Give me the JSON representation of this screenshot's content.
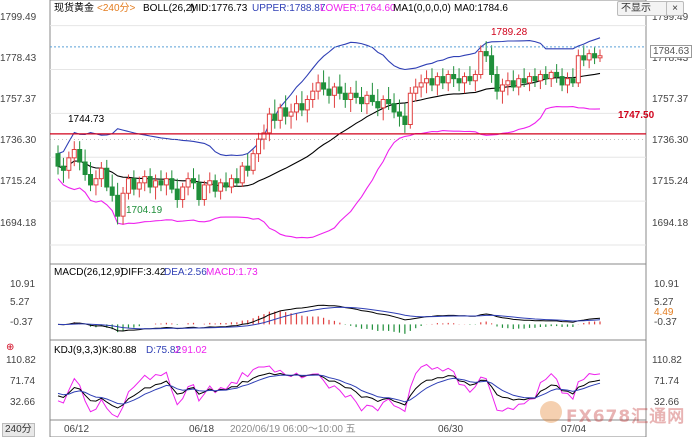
{
  "legend": {
    "instrument": "现货黄金",
    "period": "<240分>",
    "boll_label": "BOLL(26,2)",
    "mid": "MID:1776.73",
    "upper": "UPPER:1788.87",
    "lower": "LOWER:1764.60",
    "ma1": "MA1(0,0,0,0)",
    "ma0": "MA0:1784.6"
  },
  "buttons": {
    "toggle": "不显示",
    "close": "×"
  },
  "price_labels": [
    "1799.49",
    "1778.43",
    "1757.37",
    "1736.30",
    "1715.24",
    "1694.18"
  ],
  "current_price": "1784.63",
  "annotations": {
    "high": "1789.28",
    "low": "1704.19",
    "level": "1744.73",
    "hline": "1747.50"
  },
  "macd": {
    "title": "MACD(26,12,9)",
    "diff": "DIFF:3.42",
    "dea": "DEA:2.56",
    "macd": "MACD:1.73",
    "axis_labels": [
      "10.91",
      "5.27",
      "-0.37"
    ],
    "current": "4.49"
  },
  "kdj": {
    "title": "KDJ(9,3,3)",
    "k": "K:80.88",
    "d": "D:75.82",
    "j": "J:91.02",
    "axis_labels": [
      "110.82",
      "71.74",
      "32.66"
    ]
  },
  "x_labels": [
    "06/12",
    "06/18",
    "06/30",
    "07/04"
  ],
  "cursor_label": "2020/06/19 06:00～10:00 五",
  "period_tab": "240分",
  "logo_text": "FX678汇通网",
  "colors": {
    "up": "#e04040",
    "down": "#1f8f3a",
    "upper": "#2f3fb5",
    "mid": "#000000",
    "lower": "#ee22ee",
    "hline": "#d0021b",
    "dea": "#2f3fb5",
    "diff": "#000000",
    "j": "#ee22ee",
    "highlight": "#d0021b",
    "lowlabel": "#1f8f3a"
  },
  "chart_data": [
    {
      "type": "candlestick",
      "name": "现货黄金 240分",
      "y_axis_ticks": [
        1799.49,
        1778.43,
        1757.37,
        1736.3,
        1715.24,
        1694.18
      ],
      "ylim": [
        1686,
        1806
      ],
      "x_tick_labels": [
        "06/12",
        "06/18",
        "06/30",
        "07/04"
      ],
      "x_tick_index": [
        3,
        36,
        97,
        131
      ],
      "candles": [
        [
          1738,
          1742,
          1728,
          1732
        ],
        [
          1732,
          1736,
          1724,
          1730
        ],
        [
          1730,
          1739,
          1726,
          1736
        ],
        [
          1736,
          1744,
          1732,
          1740
        ],
        [
          1740,
          1744,
          1730,
          1734
        ],
        [
          1734,
          1740,
          1725,
          1728
        ],
        [
          1728,
          1734,
          1720,
          1723
        ],
        [
          1723,
          1730,
          1718,
          1726
        ],
        [
          1726,
          1734,
          1722,
          1731
        ],
        [
          1731,
          1735,
          1720,
          1722
        ],
        [
          1722,
          1728,
          1715,
          1718
        ],
        [
          1718,
          1724,
          1704,
          1708
        ],
        [
          1708,
          1722,
          1704,
          1719
        ],
        [
          1719,
          1728,
          1716,
          1726
        ],
        [
          1726,
          1730,
          1718,
          1721
        ],
        [
          1721,
          1727,
          1717,
          1724
        ],
        [
          1724,
          1730,
          1720,
          1727
        ],
        [
          1727,
          1731,
          1719,
          1722
        ],
        [
          1722,
          1728,
          1716,
          1725
        ],
        [
          1725,
          1730,
          1720,
          1723
        ],
        [
          1723,
          1729,
          1718,
          1726
        ],
        [
          1726,
          1730,
          1719,
          1721
        ],
        [
          1721,
          1726,
          1712,
          1716
        ],
        [
          1716,
          1724,
          1712,
          1722
        ],
        [
          1722,
          1729,
          1718,
          1726
        ],
        [
          1726,
          1731,
          1721,
          1724
        ],
        [
          1724,
          1728,
          1713,
          1716
        ],
        [
          1716,
          1725,
          1713,
          1723
        ],
        [
          1723,
          1729,
          1719,
          1725
        ],
        [
          1725,
          1728,
          1717,
          1720
        ],
        [
          1720,
          1726,
          1716,
          1724
        ],
        [
          1724,
          1729,
          1720,
          1722
        ],
        [
          1722,
          1728,
          1719,
          1726
        ],
        [
          1726,
          1731,
          1722,
          1724
        ],
        [
          1724,
          1734,
          1722,
          1732
        ],
        [
          1732,
          1738,
          1727,
          1730
        ],
        [
          1730,
          1740,
          1728,
          1738
        ],
        [
          1738,
          1748,
          1734,
          1745
        ],
        [
          1745,
          1752,
          1740,
          1748
        ],
        [
          1748,
          1760,
          1744,
          1757
        ],
        [
          1757,
          1764,
          1750,
          1754
        ],
        [
          1754,
          1762,
          1750,
          1760
        ],
        [
          1760,
          1766,
          1752,
          1756
        ],
        [
          1756,
          1762,
          1750,
          1758
        ],
        [
          1758,
          1766,
          1754,
          1762
        ],
        [
          1762,
          1768,
          1756,
          1759
        ],
        [
          1759,
          1766,
          1753,
          1764
        ],
        [
          1764,
          1772,
          1760,
          1768
        ],
        [
          1768,
          1776,
          1764,
          1772
        ],
        [
          1772,
          1778,
          1766,
          1769
        ],
        [
          1769,
          1775,
          1762,
          1766
        ],
        [
          1766,
          1772,
          1760,
          1770
        ],
        [
          1770,
          1776,
          1764,
          1767
        ],
        [
          1767,
          1772,
          1760,
          1764
        ],
        [
          1764,
          1770,
          1758,
          1767
        ],
        [
          1767,
          1773,
          1762,
          1765
        ],
        [
          1765,
          1770,
          1758,
          1762
        ],
        [
          1762,
          1768,
          1757,
          1766
        ],
        [
          1766,
          1772,
          1761,
          1763
        ],
        [
          1763,
          1769,
          1756,
          1760
        ],
        [
          1760,
          1766,
          1754,
          1764
        ],
        [
          1764,
          1770,
          1759,
          1762
        ],
        [
          1762,
          1767,
          1755,
          1758
        ],
        [
          1758,
          1764,
          1751,
          1756
        ],
        [
          1756,
          1762,
          1748,
          1752
        ],
        [
          1752,
          1770,
          1750,
          1767
        ],
        [
          1767,
          1774,
          1763,
          1770
        ],
        [
          1770,
          1776,
          1765,
          1772
        ],
        [
          1772,
          1778,
          1767,
          1774
        ],
        [
          1774,
          1779,
          1768,
          1771
        ],
        [
          1771,
          1777,
          1766,
          1775
        ],
        [
          1775,
          1779,
          1769,
          1772
        ],
        [
          1772,
          1778,
          1768,
          1776
        ],
        [
          1776,
          1780,
          1770,
          1774
        ],
        [
          1774,
          1779,
          1768,
          1772
        ],
        [
          1772,
          1777,
          1767,
          1775
        ],
        [
          1775,
          1780,
          1771,
          1773
        ],
        [
          1773,
          1778,
          1768,
          1776
        ],
        [
          1776,
          1790,
          1774,
          1787
        ],
        [
          1787,
          1792,
          1782,
          1785
        ],
        [
          1785,
          1790,
          1772,
          1776
        ],
        [
          1776,
          1780,
          1764,
          1768
        ],
        [
          1768,
          1774,
          1762,
          1771
        ],
        [
          1771,
          1777,
          1766,
          1773
        ],
        [
          1773,
          1778,
          1768,
          1770
        ],
        [
          1770,
          1776,
          1766,
          1774
        ],
        [
          1774,
          1779,
          1770,
          1772
        ],
        [
          1772,
          1777,
          1768,
          1775
        ],
        [
          1775,
          1779,
          1770,
          1773
        ],
        [
          1773,
          1778,
          1769,
          1776
        ],
        [
          1776,
          1780,
          1771,
          1774
        ],
        [
          1774,
          1778,
          1770,
          1777
        ],
        [
          1777,
          1781,
          1772,
          1775
        ],
        [
          1775,
          1779,
          1768,
          1771
        ],
        [
          1771,
          1777,
          1767,
          1774
        ],
        [
          1774,
          1779,
          1770,
          1772
        ],
        [
          1772,
          1788,
          1770,
          1785
        ],
        [
          1785,
          1790,
          1780,
          1783
        ],
        [
          1783,
          1788,
          1779,
          1786
        ],
        [
          1786,
          1789,
          1781,
          1784
        ],
        [
          1784,
          1788,
          1782,
          1785
        ]
      ],
      "bands": {
        "upper_end": 1788.87,
        "mid_end": 1776.73,
        "lower_end": 1764.6
      },
      "horizontal_lines": [
        1747.5,
        1789.28
      ],
      "labels": {
        "high": 1789.28,
        "low": 1704.19,
        "level": 1744.73
      }
    },
    {
      "type": "macd",
      "axis_ticks": [
        10.91,
        5.27,
        -0.37
      ],
      "last": {
        "diff": 3.42,
        "dea": 2.56,
        "macd": 1.73
      }
    },
    {
      "type": "kdj",
      "axis_ticks": [
        110.82,
        71.74,
        32.66
      ],
      "last": {
        "k": 80.88,
        "d": 75.82,
        "j": 91.02
      }
    }
  ]
}
